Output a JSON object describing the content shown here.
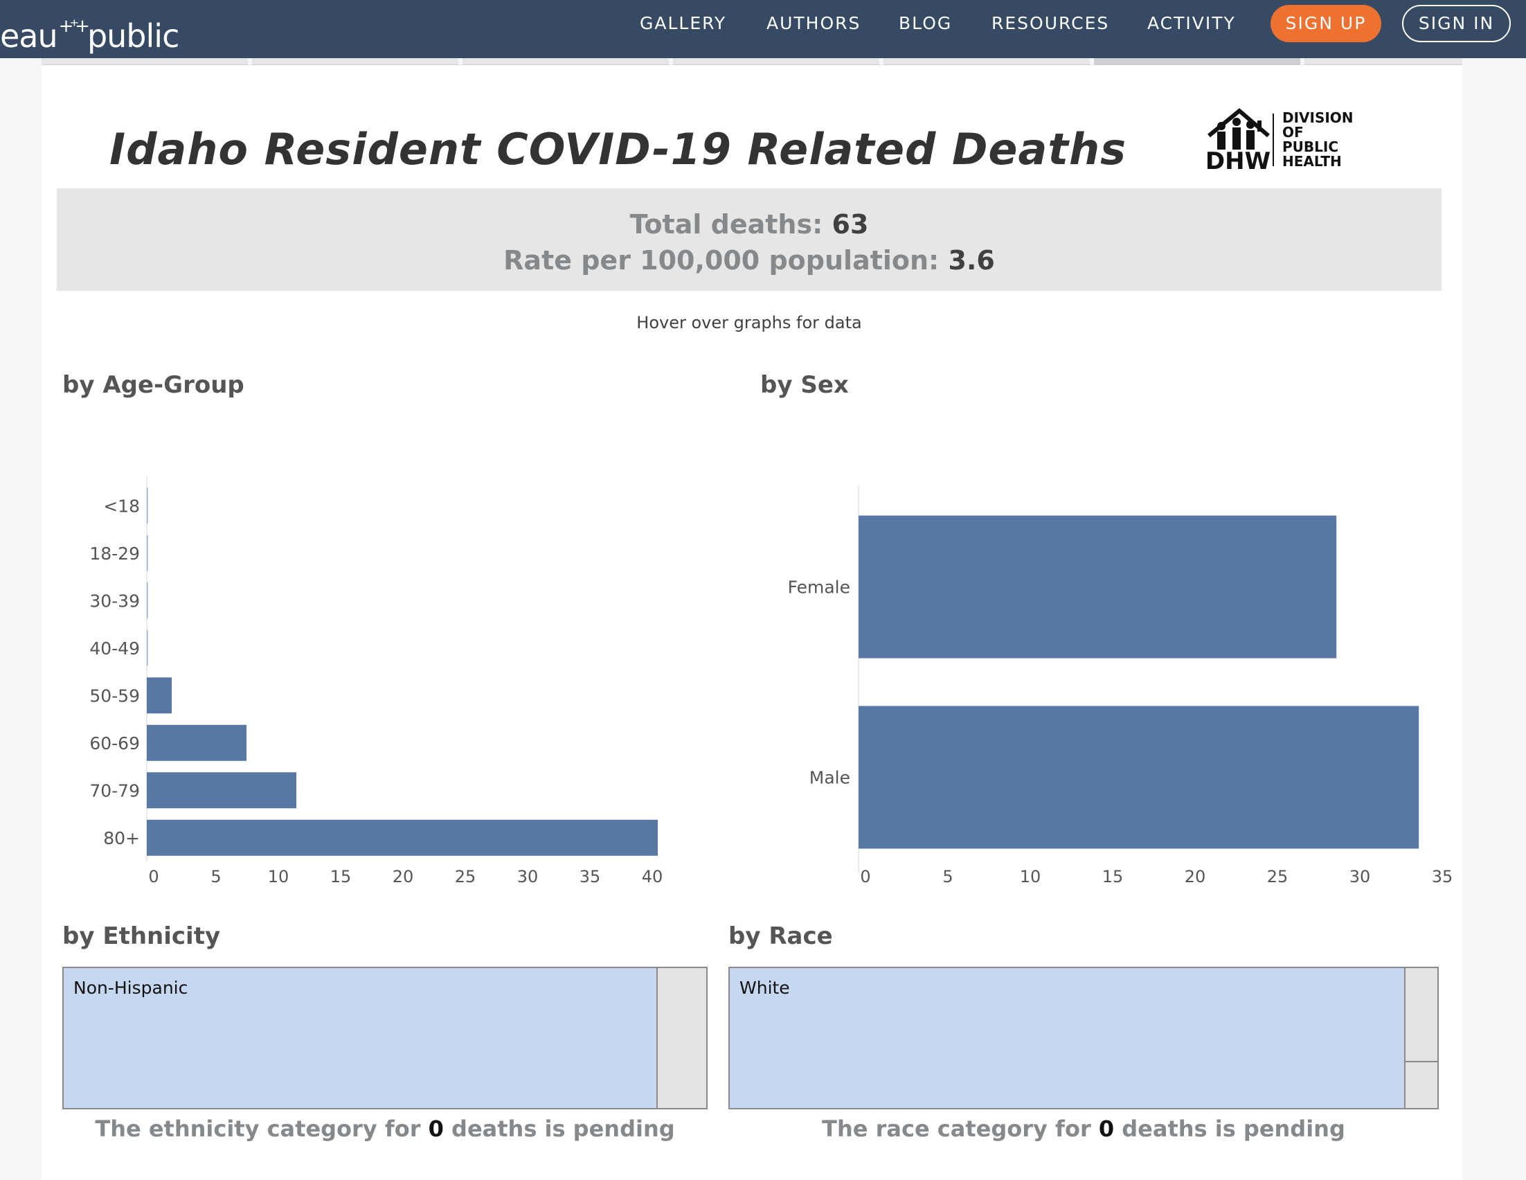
{
  "nav": {
    "logo_text": "eau",
    "logo_tail": "public",
    "links": [
      "GALLERY",
      "AUTHORS",
      "BLOG",
      "RESOURCES",
      "ACTIVITY"
    ],
    "signup_label": "SIGN UP",
    "signin_label": "SIGN IN"
  },
  "colors": {
    "nav_bg": "#364a63",
    "signup": "#ed7131",
    "bar": "#5778a4",
    "treemap_fill": "#c6d7f0"
  },
  "dashboard": {
    "title": "Idaho Resident COVID-19 Related Deaths",
    "org_logo_text": [
      "DIVISION OF",
      "PUBLIC",
      "HEALTH"
    ],
    "org_logo_mark": "DHW",
    "summary": {
      "total_label": "Total deaths:",
      "total_value": "63",
      "rate_label": "Rate per 100,000 population:",
      "rate_value": "3.6"
    },
    "hover_note": "Hover over graphs for data",
    "ethnicity": {
      "title": "by Ethnicity",
      "category": "Non-Hispanic",
      "pending_prefix": "The ethnicity category for",
      "pending_count": "0",
      "pending_suffix": "deaths is pending"
    },
    "race": {
      "title": "by Race",
      "category": "White",
      "pending_prefix": "The race category for",
      "pending_count": "0",
      "pending_suffix": "deaths is pending"
    }
  },
  "chart_data": [
    {
      "type": "bar",
      "orientation": "horizontal",
      "title": "by Age-Group",
      "categories": [
        "<18",
        "18-29",
        "30-39",
        "40-49",
        "50-59",
        "60-69",
        "70-79",
        "80+"
      ],
      "values": [
        0,
        0,
        0,
        0,
        2,
        8,
        12,
        41
      ],
      "xlim": [
        0,
        42
      ],
      "xticks": [
        0,
        5,
        10,
        15,
        20,
        25,
        30,
        35,
        40
      ],
      "grid": false
    },
    {
      "type": "bar",
      "orientation": "horizontal",
      "title": "by Sex",
      "categories": [
        "Female",
        "Male"
      ],
      "values": [
        29,
        34
      ],
      "xlim": [
        0,
        35
      ],
      "xticks": [
        0,
        5,
        10,
        15,
        20,
        25,
        30,
        35
      ],
      "grid": false
    }
  ]
}
